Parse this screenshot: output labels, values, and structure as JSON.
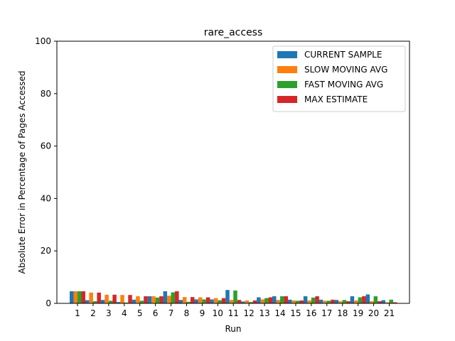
{
  "chart_data": {
    "type": "bar",
    "title": "rare_access",
    "xlabel": "Run",
    "ylabel": "Absolute Error in Percentage of Pages Accessed",
    "ylim": [
      0,
      100
    ],
    "yticks": [
      0,
      20,
      40,
      60,
      80,
      100
    ],
    "categories": [
      "1",
      "2",
      "3",
      "4",
      "5",
      "6",
      "7",
      "8",
      "9",
      "10",
      "11",
      "12",
      "13",
      "14",
      "15",
      "16",
      "17",
      "18",
      "19",
      "20",
      "21"
    ],
    "legend_position": "top-right",
    "grid": false,
    "series": [
      {
        "name": "CURRENT SAMPLE",
        "color": "#1f77b4",
        "values": [
          4.6,
          1.2,
          1.3,
          0.5,
          1.4,
          2.7,
          4.6,
          1.3,
          1.5,
          1.5,
          5.1,
          0.7,
          2.3,
          2.7,
          1.4,
          2.7,
          1.4,
          1.3,
          2.7,
          3.4,
          1.2
        ]
      },
      {
        "name": "SLOW MOVING AVG",
        "color": "#ff7f0e",
        "values": [
          4.6,
          4.1,
          3.3,
          3.2,
          2.7,
          2.7,
          2.9,
          2.4,
          2.3,
          2.0,
          1.3,
          1.1,
          1.5,
          1.3,
          1.1,
          1.1,
          1.0,
          0.8,
          1.1,
          0.8,
          0.4
        ]
      },
      {
        "name": "FAST MOVING AVG",
        "color": "#2ca02c",
        "values": [
          4.6,
          0.8,
          1.0,
          0.3,
          1.0,
          2.2,
          4.2,
          0.6,
          1.5,
          1.2,
          4.9,
          0.5,
          2.0,
          2.7,
          1.0,
          2.2,
          1.0,
          1.3,
          2.3,
          2.7,
          1.4
        ]
      },
      {
        "name": "MAX ESTIMATE",
        "color": "#d62728",
        "values": [
          4.6,
          4.1,
          3.3,
          3.2,
          2.7,
          2.7,
          4.6,
          2.4,
          2.3,
          2.0,
          1.3,
          1.1,
          2.3,
          2.7,
          1.1,
          2.7,
          1.4,
          0.8,
          2.7,
          0.8,
          0.4
        ]
      }
    ]
  }
}
